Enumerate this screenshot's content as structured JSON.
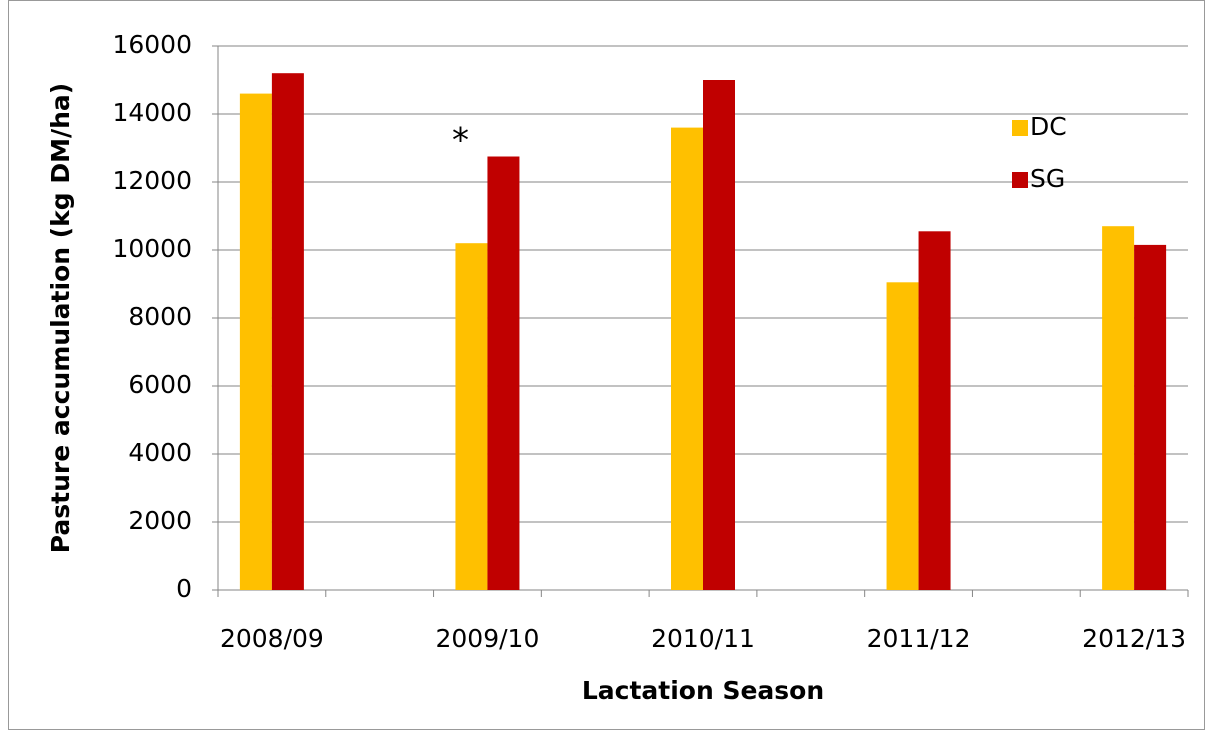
{
  "chart_data": {
    "type": "bar",
    "x_label": "Lactation Season",
    "y_label": "Pasture accumulation (kg DM/ha)",
    "annotation": "*",
    "categories": [
      "2008/09",
      null,
      "2009/10",
      null,
      "2010/11",
      null,
      "2011/12",
      null,
      "2012/13"
    ],
    "series": [
      {
        "name": "DC",
        "color": "#ffc000",
        "values": [
          14600,
          null,
          10200,
          null,
          13600,
          null,
          9050,
          null,
          10700
        ]
      },
      {
        "name": "SG",
        "color": "#c00000",
        "values": [
          15200,
          null,
          12750,
          null,
          15000,
          null,
          10550,
          null,
          10150
        ]
      }
    ],
    "ylim": [
      0,
      16000
    ],
    "yticks": [
      0,
      2000,
      4000,
      6000,
      8000,
      10000,
      12000,
      14000,
      16000
    ],
    "grid": true,
    "legend": "right"
  }
}
